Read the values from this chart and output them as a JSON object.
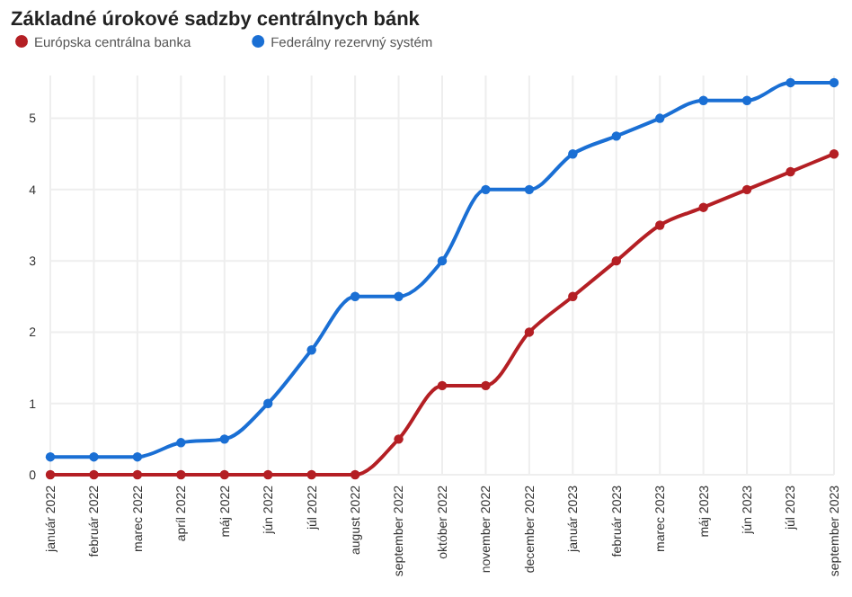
{
  "chart_data": {
    "type": "line",
    "title": "Základné úrokové sadzby centrálnych bánk",
    "categories": [
      "január 2022",
      "február 2022",
      "marec 2022",
      "apríl 2022",
      "máj 2022",
      "jún 2022",
      "júl 2022",
      "august 2022",
      "september 2022",
      "október 2022",
      "november 2022",
      "december 2022",
      "január 2023",
      "február 2023",
      "marec 2023",
      "máj 2023",
      "jún 2023",
      "júl 2023",
      "september 2023"
    ],
    "series": [
      {
        "name": "Európska centrálna banka",
        "color": "#b41f24",
        "values": [
          0,
          0,
          0,
          0,
          0,
          0,
          0,
          0,
          0.5,
          1.25,
          1.25,
          2,
          2.5,
          3,
          3.5,
          3.75,
          4,
          4.25,
          4.5
        ]
      },
      {
        "name": "Federálny rezervný systém",
        "color": "#1a6fd4",
        "values": [
          0.25,
          0.25,
          0.25,
          0.45,
          0.5,
          1,
          1.75,
          2.5,
          2.5,
          3,
          4,
          4,
          4.5,
          4.75,
          5,
          5.25,
          5.25,
          5.5,
          5.5
        ]
      }
    ],
    "ylim": [
      0,
      5.6
    ],
    "yticks": [
      0,
      1,
      2,
      3,
      4,
      5
    ],
    "grid": true,
    "legend": "top left",
    "marker": "circle",
    "line_style": "solid"
  }
}
